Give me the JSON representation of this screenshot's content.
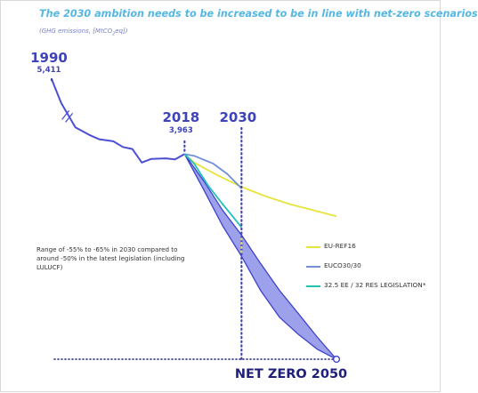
{
  "chart_data": {
    "type": "line",
    "title": "The 2030 ambition needs to be increased to be in line with net-zero scenarios",
    "subtitle": "(GHG emissions, [MtCO",
    "subtitle_sub": "2",
    "subtitle_end": "eq])",
    "x_range": [
      1990,
      2050
    ],
    "y_range": [
      0,
      5411
    ],
    "markers": [
      {
        "year": "1990",
        "value": "5,411"
      },
      {
        "year": "2018",
        "value": "3,963"
      },
      {
        "year": "2030",
        "value": ""
      }
    ],
    "net_zero_label": "NET ZERO 2050",
    "annotation": "Range of -55% to -65% in 2030 compared to around -50% in the latest legislation (including LULUCF)",
    "series": [
      {
        "name": "EU-REF16",
        "color": "#e8e33c",
        "points": [
          [
            2018,
            3963
          ],
          [
            2020,
            3800
          ],
          [
            2025,
            3550
          ],
          [
            2030,
            3330
          ],
          [
            2035,
            3150
          ],
          [
            2040,
            3000
          ],
          [
            2045,
            2880
          ],
          [
            2050,
            2760
          ]
        ]
      },
      {
        "name": "EUCO30/30",
        "color": "#6f8fd6",
        "points": [
          [
            2018,
            3963
          ],
          [
            2020,
            3930
          ],
          [
            2024,
            3780
          ],
          [
            2027,
            3580
          ],
          [
            2030,
            3300
          ]
        ]
      },
      {
        "name": "32.5 EE / 32 RES LEGISLATION*",
        "color": "#22c1b7",
        "points": [
          [
            2018,
            3963
          ],
          [
            2020,
            3780
          ],
          [
            2023,
            3350
          ],
          [
            2026,
            3000
          ],
          [
            2030,
            2550
          ]
        ]
      }
    ],
    "historical": {
      "name": "",
      "color": "#4b4fd4",
      "points": [
        [
          1990,
          5411
        ],
        [
          1992,
          4950
        ],
        [
          1995,
          4480
        ],
        [
          1998,
          4330
        ],
        [
          2000,
          4250
        ],
        [
          2003,
          4210
        ],
        [
          2005,
          4100
        ],
        [
          2007,
          4060
        ],
        [
          2009,
          3800
        ],
        [
          2011,
          3870
        ],
        [
          2014,
          3880
        ],
        [
          2016,
          3860
        ],
        [
          2018,
          3963
        ]
      ]
    },
    "range_band": {
      "color": "#9da0ea",
      "upper": [
        [
          2018,
          3963
        ],
        [
          2022,
          3450
        ],
        [
          2026,
          2880
        ],
        [
          2030,
          2400
        ],
        [
          2034,
          1850
        ],
        [
          2038,
          1330
        ],
        [
          2042,
          880
        ],
        [
          2046,
          420
        ],
        [
          2050,
          0
        ]
      ],
      "lower": [
        [
          2018,
          3963
        ],
        [
          2022,
          3280
        ],
        [
          2026,
          2580
        ],
        [
          2030,
          1990
        ],
        [
          2034,
          1330
        ],
        [
          2038,
          810
        ],
        [
          2042,
          480
        ],
        [
          2046,
          190
        ],
        [
          2050,
          0
        ]
      ]
    },
    "legend_placement": "right",
    "grid": false
  }
}
